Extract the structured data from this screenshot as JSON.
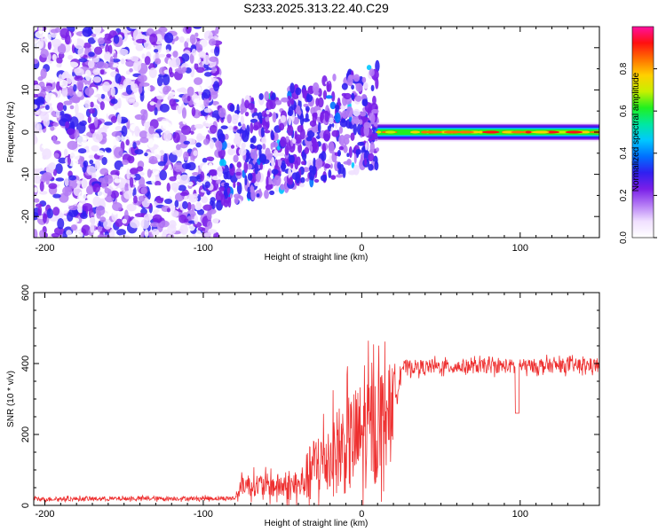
{
  "title": "S233.2025.313.22.40.C29",
  "chart_data": [
    {
      "type": "heatmap",
      "xlabel": "Height of straight line (km)",
      "ylabel": "Frequency (Hz)",
      "xlim": [
        -207,
        150
      ],
      "ylim": [
        -25,
        25
      ],
      "xticks": [
        -200,
        -100,
        0,
        100
      ],
      "yticks": [
        -20,
        -10,
        0,
        10,
        20
      ],
      "colorbar": {
        "label": "Normalized spectral amplitude",
        "range": [
          0,
          1
        ],
        "ticks": [
          0.0,
          0.2,
          0.4,
          0.6,
          0.8
        ],
        "tick_labels": [
          "0.0",
          "0.2",
          "0.4",
          "0.6",
          "0.8"
        ],
        "colors": [
          "#ffffff",
          "#f0e0ff",
          "#b57cf5",
          "#7a1fe8",
          "#3020f0",
          "#0070ff",
          "#00c8ff",
          "#00e8a0",
          "#20f020",
          "#c8f000",
          "#ffd000",
          "#ff7000",
          "#ff1010",
          "#ff10a0"
        ]
      },
      "regions": [
        {
          "name": "noise-scatter",
          "x_range": [
            -207,
            -90
          ],
          "freq_range": [
            -25,
            25
          ],
          "amplitude": 0.15
        },
        {
          "name": "rising-scatter",
          "x_range": [
            -90,
            10
          ],
          "freq_range": [
            -15,
            22
          ],
          "amplitude": 0.25
        },
        {
          "name": "signal-band",
          "x_range": [
            10,
            150
          ],
          "freq_center": 0,
          "freq_halfwidth": 1.8,
          "amplitude": 0.95
        }
      ]
    },
    {
      "type": "line",
      "xlabel": "Height of straight line (km)",
      "ylabel": "SNR (10 * v/v)",
      "xlim": [
        -207,
        150
      ],
      "ylim": [
        0,
        600
      ],
      "xticks": [
        -200,
        -100,
        0,
        100
      ],
      "yticks": [
        0,
        200,
        400,
        600
      ],
      "color": "#ee3030",
      "profile": [
        {
          "x": -207,
          "mean": 18,
          "spread": 12
        },
        {
          "x": -80,
          "mean": 20,
          "spread": 12
        },
        {
          "x": -75,
          "mean": 60,
          "spread": 60
        },
        {
          "x": -40,
          "mean": 50,
          "spread": 80
        },
        {
          "x": -30,
          "mean": 110,
          "spread": 180
        },
        {
          "x": -5,
          "mean": 180,
          "spread": 300
        },
        {
          "x": 10,
          "mean": 230,
          "spread": 340
        },
        {
          "x": 20,
          "mean": 300,
          "spread": 200
        },
        {
          "x": 25,
          "mean": 390,
          "spread": 40
        },
        {
          "x": 150,
          "mean": 395,
          "spread": 40
        }
      ],
      "dips": [
        {
          "x": 98,
          "value": 260
        }
      ]
    }
  ]
}
